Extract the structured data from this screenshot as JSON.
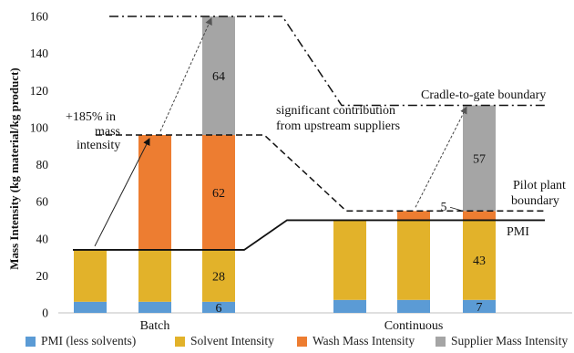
{
  "chart_data": {
    "type": "bar",
    "stacked": true,
    "ylabel": "Mass Intensity (kg material/kg product)",
    "ylim": [
      0,
      160
    ],
    "yticks": [
      0,
      20,
      40,
      60,
      80,
      100,
      120,
      140,
      160
    ],
    "grid": false,
    "legend_position": "bottom",
    "groups": [
      "Batch",
      "Continuous"
    ],
    "series_colors": {
      "pmi_less_solvents": "#5b9bd5",
      "solvent": "#e2b22a",
      "wash": "#ed7d31",
      "supplier": "#a5a5a5"
    },
    "legend": [
      {
        "key": "pmi_less_solvents",
        "label": "PMI (less solvents)"
      },
      {
        "key": "solvent",
        "label": "Solvent Intensity"
      },
      {
        "key": "wash",
        "label": "Wash Mass Intensity"
      },
      {
        "key": "supplier",
        "label": "Supplier Mass Intensity"
      }
    ],
    "bars": [
      {
        "group": "Batch",
        "pmi_less_solvents": 6,
        "solvent": 28,
        "wash": 0,
        "supplier": 0
      },
      {
        "group": "Batch",
        "pmi_less_solvents": 6,
        "solvent": 28,
        "wash": 62,
        "supplier": 0
      },
      {
        "group": "Batch",
        "pmi_less_solvents": 6,
        "solvent": 28,
        "wash": 62,
        "supplier": 64
      },
      {
        "group": "Continuous",
        "pmi_less_solvents": 7,
        "solvent": 43,
        "wash": 0,
        "supplier": 0
      },
      {
        "group": "Continuous",
        "pmi_less_solvents": 7,
        "solvent": 43,
        "wash": 5,
        "supplier": 0
      },
      {
        "group": "Continuous",
        "pmi_less_solvents": 7,
        "solvent": 43,
        "wash": 5,
        "supplier": 57
      }
    ],
    "segment_labels": [
      {
        "bar": 2,
        "key": "pmi_less_solvents",
        "text": "6"
      },
      {
        "bar": 2,
        "key": "solvent",
        "text": "28"
      },
      {
        "bar": 2,
        "key": "wash",
        "text": "62"
      },
      {
        "bar": 2,
        "key": "supplier",
        "text": "64"
      },
      {
        "bar": 5,
        "key": "pmi_less_solvents",
        "text": "7"
      },
      {
        "bar": 5,
        "key": "solvent",
        "text": "43"
      },
      {
        "bar": 5,
        "key": "wash",
        "text": "5"
      },
      {
        "bar": 5,
        "key": "supplier",
        "text": "57"
      }
    ],
    "boundary_lines": [
      {
        "name": "PMI",
        "style": "solid",
        "batch_value": 34,
        "continuous_value": 50
      },
      {
        "name": "Pilot plant boundary",
        "style": "dashed",
        "batch_value": 96,
        "continuous_value": 55
      },
      {
        "name": "Cradle-to-gate boundary",
        "style": "dashdot",
        "batch_value": 160,
        "continuous_value": 112
      }
    ],
    "annotations": {
      "batch_increase": [
        "+185% in",
        "mass",
        "intensity"
      ],
      "upstream": [
        "significant contribution",
        "from upstream suppliers"
      ],
      "cradle": "Cradle-to-gate boundary",
      "pilot": [
        "Pilot plant",
        "boundary"
      ],
      "pmi": "PMI",
      "five": "5"
    }
  }
}
